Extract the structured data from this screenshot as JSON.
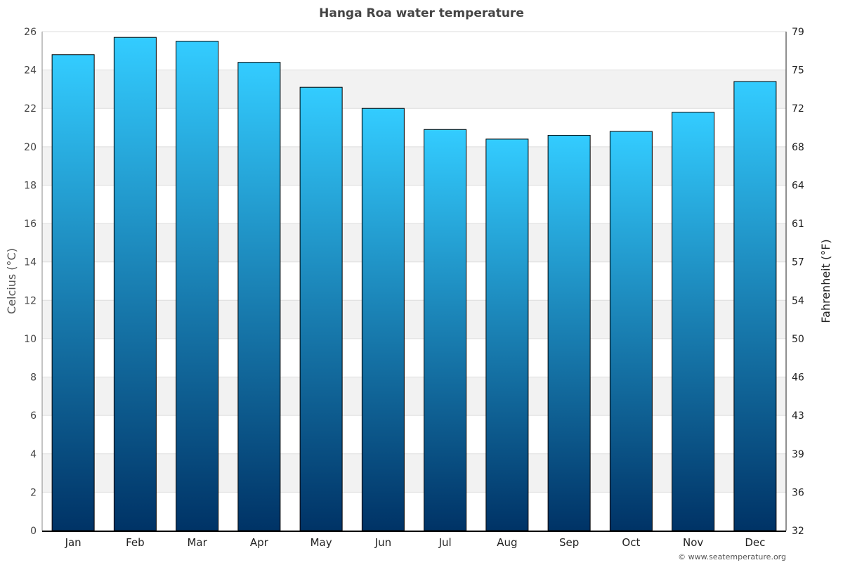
{
  "chart_data": {
    "type": "bar",
    "title": "Hanga Roa water temperature",
    "ylabel": "Celcius (°C)",
    "y2label": "Fahrenheit (°F)",
    "categories": [
      "Jan",
      "Feb",
      "Mar",
      "Apr",
      "May",
      "Jun",
      "Jul",
      "Aug",
      "Sep",
      "Oct",
      "Nov",
      "Dec"
    ],
    "values": [
      24.8,
      25.7,
      25.5,
      24.4,
      23.1,
      22.0,
      20.9,
      20.4,
      20.6,
      20.8,
      21.8,
      23.4
    ],
    "ylim": [
      0,
      26
    ],
    "yticks": [
      "0",
      "2",
      "4",
      "6",
      "8",
      "10",
      "12",
      "14",
      "16",
      "18",
      "20",
      "22",
      "24",
      "26"
    ],
    "y2ticks": [
      "32",
      "36",
      "39",
      "43",
      "46",
      "50",
      "54",
      "57",
      "61",
      "64",
      "68",
      "72",
      "75",
      "79"
    ],
    "grid": true,
    "bar_gradient": {
      "top": "#33ccff",
      "bottom": "#003366"
    },
    "band_color": "#f2f2f2"
  },
  "credit": "© www.seatemperature.org"
}
